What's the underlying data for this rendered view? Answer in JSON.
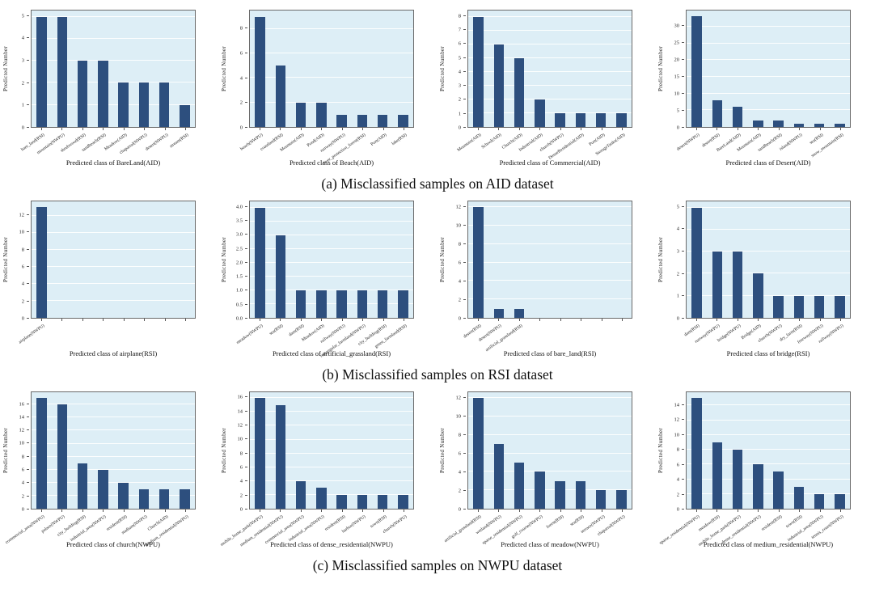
{
  "figure": {
    "y_axis_label": "Predicted Number",
    "bar_color": "#2d4f7e",
    "plot_bg": "#ddeef6",
    "grid_color": "#ffffff",
    "border_color": "#6a6a6a"
  },
  "rows": [
    {
      "caption": "(a) Misclassified samples on AID dataset",
      "charts": [
        0,
        1,
        2,
        3
      ]
    },
    {
      "caption": "(b) Misclassified samples on RSI dataset",
      "charts": [
        4,
        5,
        6,
        7
      ]
    },
    {
      "caption": "(c) Misclassified samples on NWPU dataset",
      "charts": [
        8,
        9,
        10,
        11
      ]
    }
  ],
  "chart_data": [
    {
      "type": "bar",
      "title": "Predicted class of BareLand(AID)",
      "ylabel": "Predicted Number",
      "categories": [
        "bare_land(RSI)",
        "mountain(NWPU)",
        "shrubwood(RSI)",
        "sandbeach(RSI)",
        "Meadow(AID)",
        "chaparral(NWPU)",
        "desert(NWPU)",
        "stream(RSI)"
      ],
      "values": [
        5,
        5,
        3,
        3,
        2,
        2,
        2,
        1
      ],
      "yticks": [
        "0",
        "1",
        "2",
        "3",
        "4",
        "5"
      ],
      "ytick_values": [
        0,
        1,
        2,
        3,
        4,
        5
      ],
      "ymax": 5.28,
      "slots": 8,
      "grid": true,
      "legend": "none"
    },
    {
      "type": "bar",
      "title": "Predicted class of Beach(AID)",
      "ylabel": "Predicted Number",
      "categories": [
        "beach(NWPU)",
        "coastland(RSI)",
        "Mountain(AID)",
        "Pond(AID)",
        "runway(NWPU)",
        "river_protection_forest(RSI)",
        "Port(AID)",
        "lake(RSI)"
      ],
      "values": [
        9,
        5,
        2,
        2,
        1,
        1,
        1,
        1
      ],
      "yticks": [
        "0",
        "2",
        "4",
        "6",
        "8"
      ],
      "ytick_values": [
        0,
        2,
        4,
        6,
        8
      ],
      "ymax": 9.5,
      "slots": 8,
      "grid": true,
      "legend": "none"
    },
    {
      "type": "bar",
      "title": "Predicted class of Commercial(AID)",
      "ylabel": "Predicted Number",
      "categories": [
        "Mountain(AID)",
        "School(AID)",
        "Church(AID)",
        "Industrial(AID)",
        "church(NWPU)",
        "DenseResidential(AID)",
        "Port(AID)",
        "StorageTanks(AID)"
      ],
      "values": [
        8,
        6,
        5,
        2,
        1,
        1,
        1,
        1
      ],
      "yticks": [
        "0",
        "1",
        "2",
        "3",
        "4",
        "5",
        "6",
        "7",
        "8"
      ],
      "ytick_values": [
        0,
        1,
        2,
        3,
        4,
        5,
        6,
        7,
        8
      ],
      "ymax": 8.45,
      "slots": 8,
      "grid": true,
      "legend": "none"
    },
    {
      "type": "bar",
      "title": "Predicted class of Desert(AID)",
      "ylabel": "Predicted Number",
      "categories": [
        "desert(NWPU)",
        "desert(RSI)",
        "BareLand(AID)",
        "Mountain(AID)",
        "sandbeach(RSI)",
        "island(NWPU)",
        "sea(RSI)",
        "snow_mountain(RSI)"
      ],
      "values": [
        33,
        8,
        6,
        2,
        2,
        1,
        1,
        1
      ],
      "yticks": [
        "0",
        "5",
        "10",
        "15",
        "20",
        "25",
        "30"
      ],
      "ytick_values": [
        0,
        5,
        10,
        15,
        20,
        25,
        30
      ],
      "ymax": 34.8,
      "slots": 8,
      "grid": true,
      "legend": "none"
    },
    {
      "type": "bar",
      "title": "Predicted class of airplane(RSI)",
      "ylabel": "Predicted Number",
      "categories": [
        "airplane(NWPU)"
      ],
      "values": [
        13
      ],
      "yticks": [
        "0",
        "2",
        "4",
        "6",
        "8",
        "10",
        "12"
      ],
      "ytick_values": [
        0,
        2,
        4,
        6,
        8,
        10,
        12
      ],
      "ymax": 13.7,
      "slots": 8,
      "grid": true,
      "legend": "none"
    },
    {
      "type": "bar",
      "title": "Predicted class of artificial_grassland(RSI)",
      "ylabel": "Predicted Number",
      "categories": [
        "meadow(NWPU)",
        "sea(RSI)",
        "dam(RSI)",
        "Meadow(AID)",
        "railway(NWPU)",
        "rectangular_farmland(NWPU)",
        "city_building(RSI)",
        "green_farmland(RSI)"
      ],
      "values": [
        4,
        3,
        1,
        1,
        1,
        1,
        1,
        1
      ],
      "yticks": [
        "0.0",
        "0.5",
        "1.0",
        "1.5",
        "2.0",
        "2.5",
        "3.0",
        "3.5",
        "4.0"
      ],
      "ytick_values": [
        0,
        0.5,
        1,
        1.5,
        2,
        2.5,
        3,
        3.5,
        4
      ],
      "ymax": 4.22,
      "slots": 8,
      "grid": true,
      "legend": "none"
    },
    {
      "type": "bar",
      "title": "Predicted class of bare_land(RSI)",
      "ylabel": "Predicted Number",
      "categories": [
        "desert(RSI)",
        "desert(NWPU)",
        "artificial_grassland(RSI)"
      ],
      "values": [
        12,
        1,
        1
      ],
      "yticks": [
        "0",
        "2",
        "4",
        "6",
        "8",
        "10",
        "12"
      ],
      "ytick_values": [
        0,
        2,
        4,
        6,
        8,
        10,
        12
      ],
      "ymax": 12.65,
      "slots": 8,
      "grid": true,
      "legend": "none"
    },
    {
      "type": "bar",
      "title": "Predicted class of bridge(RSI)",
      "ylabel": "Predicted Number",
      "categories": [
        "dam(RSI)",
        "runway(NWPU)",
        "bridge(NWPU)",
        "Bridge(AID)",
        "church(NWPU)",
        "dry_farm(RSI)",
        "freeway(NWPU)",
        "railway(NWPU)"
      ],
      "values": [
        5,
        3,
        3,
        2,
        1,
        1,
        1,
        1
      ],
      "yticks": [
        "0",
        "1",
        "2",
        "3",
        "4",
        "5"
      ],
      "ytick_values": [
        0,
        1,
        2,
        3,
        4,
        5
      ],
      "ymax": 5.28,
      "slots": 8,
      "grid": true,
      "legend": "none"
    },
    {
      "type": "bar",
      "title": "Predicted class of church(NWPU)",
      "ylabel": "Predicted Number",
      "categories": [
        "commercial_area(NWPU)",
        "palace(NWPU)",
        "city_building(RSI)",
        "industrial_area(NWPU)",
        "resident(RSI)",
        "stadium(NWPU)",
        "Church(AID)",
        "medium_residential(NWPU)"
      ],
      "values": [
        17,
        16,
        7,
        6,
        4,
        3,
        3,
        3
      ],
      "yticks": [
        "0",
        "2",
        "4",
        "6",
        "8",
        "10",
        "12",
        "14",
        "16"
      ],
      "ytick_values": [
        0,
        2,
        4,
        6,
        8,
        10,
        12,
        14,
        16
      ],
      "ymax": 17.9,
      "slots": 8,
      "grid": true,
      "legend": "none"
    },
    {
      "type": "bar",
      "title": "Predicted class of dense_residential(NWPU)",
      "ylabel": "Predicted Number",
      "categories": [
        "mobile_home_park(NWPU)",
        "medium_residential(NWPU)",
        "commercial_area(NWPU)",
        "industrial_area(NWPU)",
        "resident(RSI)",
        "harbor(NWPU)",
        "town(RSI)",
        "church(NWPU)"
      ],
      "values": [
        16,
        15,
        4,
        3,
        2,
        2,
        2,
        2
      ],
      "yticks": [
        "0",
        "2",
        "4",
        "6",
        "8",
        "10",
        "12",
        "14",
        "16"
      ],
      "ytick_values": [
        0,
        2,
        4,
        6,
        8,
        10,
        12,
        14,
        16
      ],
      "ymax": 16.85,
      "slots": 8,
      "grid": true,
      "legend": "none"
    },
    {
      "type": "bar",
      "title": "Predicted class of meadow(NWPU)",
      "ylabel": "Predicted Number",
      "categories": [
        "artificial_grassland(RSI)",
        "wetland(NWPU)",
        "sparse_residential(NWPU)",
        "golf_course(NWPU)",
        "forest(RSI)",
        "sea(RSI)",
        "terrace(NWPU)",
        "chaparral(NWPU)"
      ],
      "values": [
        12,
        7,
        5,
        4,
        3,
        3,
        2,
        2
      ],
      "yticks": [
        "0",
        "2",
        "4",
        "6",
        "8",
        "10",
        "12"
      ],
      "ytick_values": [
        0,
        2,
        4,
        6,
        8,
        10,
        12
      ],
      "ymax": 12.65,
      "slots": 8,
      "grid": true,
      "legend": "none"
    },
    {
      "type": "bar",
      "title": "Predicted class of medium_residential(NWPU)",
      "ylabel": "Predicted Number",
      "categories": [
        "sparse_residential(NWPU)",
        "meadow(RSI)",
        "mobile_home_park(NWPU)",
        "dense_residential(NWPU)",
        "resident(RSI)",
        "town(RSI)",
        "industrial_area(NWPU)",
        "tennis_court(NWPU)"
      ],
      "values": [
        15,
        9,
        8,
        6,
        5,
        3,
        2,
        2
      ],
      "yticks": [
        "0",
        "2",
        "4",
        "6",
        "8",
        "10",
        "12",
        "14"
      ],
      "ytick_values": [
        0,
        2,
        4,
        6,
        8,
        10,
        12,
        14
      ],
      "ymax": 15.8,
      "slots": 8,
      "grid": true,
      "legend": "none"
    }
  ]
}
